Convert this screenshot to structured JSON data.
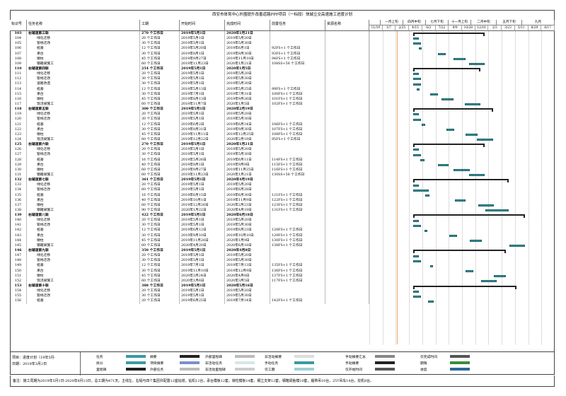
{
  "title": "西安市体育中心外围提升改善道路PPP项目（一标段）快城立交高速施工进度计划",
  "columns": {
    "id": "标识号",
    "name": "任务名称",
    "duration": "工期",
    "start": "开始时间",
    "finish": "完成时间",
    "predecessors": "前置任务",
    "resources": "资源名称"
  },
  "timescale": {
    "top": [
      "",
      "一月上旬",
      "四月中旬",
      "七月下旬",
      "十一月上旬",
      "二月中旬",
      "五月下旬",
      "九月"
    ],
    "bottom": [
      "11/19",
      "1/7",
      "2/25",
      "4/15",
      "6/3",
      "7/22",
      "9/9",
      "10/28",
      "12/16",
      "2/3",
      "3/23",
      "5/11",
      "6/29",
      "8/17"
    ]
  },
  "rows": [
    {
      "id": "103",
      "name": "右辅道第三联",
      "dur": "270 个工作日",
      "start": "2019年5月1日",
      "end": "2020年1月21日",
      "pred": "",
      "sum": true
    },
    {
      "id": "104",
      "name": "绿化迁移",
      "dur": "20 个工作日",
      "start": "2019年5月1日",
      "end": "2019年5月20日",
      "pred": ""
    },
    {
      "id": "105",
      "name": "管线迁改",
      "dur": "30 个工作日",
      "start": "2019年5月1日",
      "end": "2019年5月30日",
      "pred": ""
    },
    {
      "id": "106",
      "name": "桩基",
      "dur": "12 个工作日",
      "start": "2019年5月20日",
      "end": "2019年6月1日",
      "pred": "92FS+1 个工作日"
    },
    {
      "id": "107",
      "name": "承台",
      "dur": "30 个工作日",
      "start": "2019年8月1日",
      "end": "2019年8月30日",
      "pred": "93FS+1 个工作日"
    },
    {
      "id": "108",
      "name": "墩柱",
      "dur": "45 个工作日",
      "start": "2019年9月27日",
      "end": "2019年11月10日",
      "pred": "94FS+1 个工作日"
    },
    {
      "id": "109",
      "name": "钢箱梁施工",
      "dur": "60 个工作日",
      "start": "2019年11月23日",
      "end": "2020年1月21日",
      "pred": "108SS+58 个工作日"
    },
    {
      "id": "110",
      "name": "右辅道第四联",
      "dur": "254 个工作日",
      "start": "2019年5月1日",
      "end": "2020年1月5日",
      "pred": "",
      "sum": true
    },
    {
      "id": "111",
      "name": "绿化迁移",
      "dur": "20 个工作日",
      "start": "2019年5月1日",
      "end": "2019年5月20日",
      "pred": ""
    },
    {
      "id": "112",
      "name": "管线迁改",
      "dur": "30 个工作日",
      "start": "2019年5月1日",
      "end": "2019年5月30日",
      "pred": ""
    },
    {
      "id": "113",
      "name": "道路改造",
      "dur": "30 个工作日",
      "start": "2019年5月1日",
      "end": "2019年5月30日",
      "pred": ""
    },
    {
      "id": "114",
      "name": "桩基",
      "dur": "12 个工作日",
      "start": "2019年5月13日",
      "end": "2019年5月25日",
      "pred": "99FS+1 个工作日"
    },
    {
      "id": "115",
      "name": "承台",
      "dur": "30 个工作日",
      "start": "2019年7月1日",
      "end": "2019年7月31日",
      "pred": "100FS+1 个工作日"
    },
    {
      "id": "116",
      "name": "墩柱",
      "dur": "45 个工作日",
      "start": "2019年8月13日",
      "end": "2019年9月26日",
      "pred": "101FS+1 个工作日"
    },
    {
      "id": "117",
      "name": "现浇梁施工",
      "dur": "60 个工作日",
      "start": "2019年11月7日",
      "end": "2020年1月5日",
      "pred": "102FS+1 个工作日"
    },
    {
      "id": "118",
      "name": "右辅道第五联",
      "dur": "300 个工作日",
      "start": "2019年5月1日",
      "end": "2020年2月19日",
      "pred": "",
      "sum": true
    },
    {
      "id": "119",
      "name": "绿化迁移",
      "dur": "20 个工作日",
      "start": "2019年5月1日",
      "end": "2019年5月20日",
      "pred": ""
    },
    {
      "id": "120",
      "name": "管线迁改",
      "dur": "30 个工作日",
      "start": "2019年5月1日",
      "end": "2019年5月30日",
      "pred": ""
    },
    {
      "id": "121",
      "name": "桩基",
      "dur": "12 个工作日",
      "start": "2019年6月2日",
      "end": "2019年6月14日",
      "pred": "106FS+1 个工作日"
    },
    {
      "id": "122",
      "name": "承台",
      "dur": "30 个工作日",
      "start": "2019年8月31日",
      "end": "2019年9月30日",
      "pred": "107FS+1 个工作日"
    },
    {
      "id": "123",
      "name": "墩柱",
      "dur": "45 个工作日",
      "start": "2019年11月11日",
      "end": "2019年12月25日",
      "pred": "108FS+1 个工作日"
    },
    {
      "id": "124",
      "name": "现浇梁施工",
      "dur": "60 个工作日",
      "start": "2019年12月22日",
      "end": "2020年2月19日",
      "pred": "95FS+1 个工作日"
    },
    {
      "id": "125",
      "name": "右辅道第六联",
      "dur": "270 个工作日",
      "start": "2019年5月1日",
      "end": "2020年1月21日",
      "pred": "",
      "sum": true
    },
    {
      "id": "126",
      "name": "绿化迁移",
      "dur": "20 个工作日",
      "start": "2019年5月1日",
      "end": "2019年5月20日",
      "pred": ""
    },
    {
      "id": "127",
      "name": "管线迁改",
      "dur": "30 个工作日",
      "start": "2019年5月1日",
      "end": "2019年5月30日",
      "pred": ""
    },
    {
      "id": "128",
      "name": "桩基",
      "dur": "16 个工作日",
      "start": "2019年5月26日",
      "end": "2019年6月11日",
      "pred": "114FS+1 个工作日"
    },
    {
      "id": "129",
      "name": "承台",
      "dur": "40 个工作日",
      "start": "2019年8月1日",
      "end": "2019年9月9日",
      "pred": "115FS+1 个工作日"
    },
    {
      "id": "130",
      "name": "墩柱",
      "dur": "60 个工作日",
      "start": "2019年9月27日",
      "end": "2019年11月25日",
      "pred": "116FS+1 个工作日"
    },
    {
      "id": "131",
      "name": "钢箱梁施工",
      "dur": "60 个工作日",
      "start": "2019年11月23日",
      "end": "2020年1月21日",
      "pred": "130SS+58 个工作日"
    },
    {
      "id": "132",
      "name": "右辅道第七联",
      "dur": "361 个工作日",
      "start": "2019年5月1日",
      "end": "2020年4月19日",
      "pred": "",
      "sum": true
    },
    {
      "id": "133",
      "name": "绿化迁移",
      "dur": "20 个工作日",
      "start": "2019年5月1日",
      "end": "2019年5月20日",
      "pred": ""
    },
    {
      "id": "134",
      "name": "管线迁改",
      "dur": "60 个工作日",
      "start": "2019年5月1日",
      "end": "2019年6月28日",
      "pred": ""
    },
    {
      "id": "135",
      "name": "桩基",
      "dur": "16 个工作日",
      "start": "2019年6月15日",
      "end": "2019年6月30日",
      "pred": "121FS+1 个工作日"
    },
    {
      "id": "136",
      "name": "承台",
      "dur": "40 个工作日",
      "start": "2019年10月1日",
      "end": "2019年11月9日",
      "pred": "122FS+1 个工作日"
    },
    {
      "id": "137",
      "name": "墩柱",
      "dur": "60 个工作日",
      "start": "2019年12月26日",
      "end": "2020年2月23日",
      "pred": "123FS+1 个工作日"
    },
    {
      "id": "138",
      "name": "钢箱梁施工",
      "dur": "90 个工作日",
      "start": "2020年1月22日",
      "end": "2020年4月19日",
      "pred": "131FS+1 个工作日"
    },
    {
      "id": "139",
      "name": "右辅道第八联",
      "dur": "422 个工作日",
      "start": "2019年5月1日",
      "end": "2020年6月18日",
      "pred": "",
      "sum": true
    },
    {
      "id": "140",
      "name": "绿化迁移",
      "dur": "20 个工作日",
      "start": "2019年5月1日",
      "end": "2019年5月20日",
      "pred": ""
    },
    {
      "id": "141",
      "name": "管线迁改",
      "dur": "30 个工作日",
      "start": "2019年5月1日",
      "end": "2019年5月30日",
      "pred": ""
    },
    {
      "id": "142",
      "name": "桩基",
      "dur": "12 个工作日",
      "start": "2019年6月12日",
      "end": "2019年6月23日",
      "pred": "128FS+1 个工作日"
    },
    {
      "id": "143",
      "name": "承台",
      "dur": "30 个工作日",
      "start": "2019年9月10日",
      "end": "2019年10月10日",
      "pred": "129FS+1 个工作日"
    },
    {
      "id": "144",
      "name": "墩柱",
      "dur": "45 个工作日",
      "start": "2019年11月26日",
      "end": "2020年1月9日",
      "pred": "130FS+1 个工作日"
    },
    {
      "id": "145",
      "name": "钢箱梁施工",
      "dur": "60 个工作日",
      "start": "2020年4月20日",
      "end": "2020年6月18日",
      "pred": "138FS+1 个工作日"
    },
    {
      "id": "146",
      "name": "右辅道第九联",
      "dur": "350 个工作日",
      "start": "2019年5月1日",
      "end": "2020年4月8日",
      "pred": "",
      "sum": true
    },
    {
      "id": "147",
      "name": "绿化迁移",
      "dur": "20 个工作日",
      "start": "2019年5月1日",
      "end": "2019年5月20日",
      "pred": ""
    },
    {
      "id": "148",
      "name": "管线迁改",
      "dur": "30 个工作日",
      "start": "2019年5月1日",
      "end": "2019年5月30日",
      "pred": ""
    },
    {
      "id": "149",
      "name": "桩基",
      "dur": "12 个工作日",
      "start": "2019年7月1日",
      "end": "2019年7月13日",
      "pred": "135FS+1 个工作日"
    },
    {
      "id": "150",
      "name": "承台",
      "dur": "30 个工作日",
      "start": "2019年11月10日",
      "end": "2019年12月9日",
      "pred": "136FS+1 个工作日"
    },
    {
      "id": "151",
      "name": "墩柱",
      "dur": "45 个工作日",
      "start": "2020年2月24日",
      "end": "2020年4月8日",
      "pred": "137FS+1 个工作日"
    },
    {
      "id": "152",
      "name": "现浇梁施工",
      "dur": "60 个工作日",
      "start": "2020年1月6日",
      "end": "2020年3月5日",
      "pred": "117FS+1 个工作日"
    },
    {
      "id": "153",
      "name": "右辅道第十联",
      "dur": "388 个工作日",
      "start": "2019年5月1日",
      "end": "2020年5月16日",
      "pred": "",
      "sum": true
    },
    {
      "id": "154",
      "name": "绿化迁移",
      "dur": "20 个工作日",
      "start": "2019年5月1日",
      "end": "2019年5月20日",
      "pred": ""
    },
    {
      "id": "155",
      "name": "管线迁改",
      "dur": "30 个工作日",
      "start": "2019年5月1日",
      "end": "2019年5月30日",
      "pred": ""
    },
    {
      "id": "156",
      "name": "桩基",
      "dur": "20 个工作日",
      "start": "2019年6月25日",
      "end": "2019年7月14日",
      "pred": "142FS+1 个工作日"
    }
  ],
  "legend": {
    "project": "项目：进度计划（19年5月-",
    "date": "日期：2019年3月2日",
    "items": [
      "任务",
      "拆分",
      "里程碑",
      "摘要",
      "项目摘要",
      "外部任务",
      "外部里程碑",
      "非活动任务",
      "非活动里程碑",
      "非活动摘要",
      "手动任务",
      "仅工期",
      "手动摘要汇总",
      "手动摘要",
      "仅开始时间",
      "仅完成时间",
      "期限",
      "进度"
    ]
  },
  "footnote": "备注：施工周期为2019年5月1日-2020年8月13日，总工期为471天。主线左、右幅与四个集团共配置12座钻塔，钻机12台，承台模板12套，墩柱模板14套，钢立支架12套，钢箱梁胎模10套，履带吊10台，25T吊车14台，挖机8台。"
}
